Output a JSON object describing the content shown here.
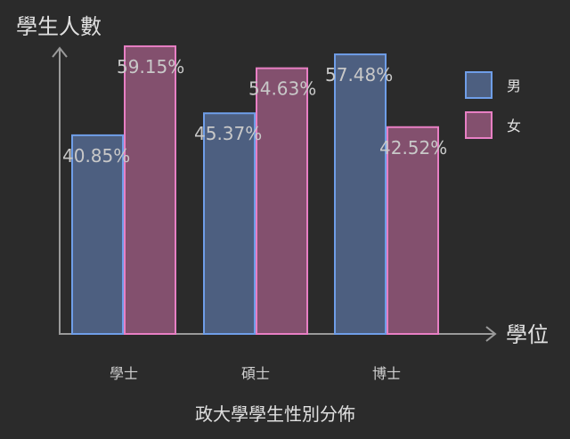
{
  "chart_data": {
    "type": "bar",
    "title": "政大學學生性別分佈",
    "xlabel": "學位",
    "ylabel": "學生人數",
    "categories": [
      "學士",
      "碩士",
      "博士"
    ],
    "series": [
      {
        "name": "男",
        "values": [
          40.85,
          45.37,
          57.48
        ],
        "labels": [
          "40.85%",
          "45.37%",
          "57.48%"
        ],
        "fill": "#4d5f80",
        "stroke": "#6f9ee8"
      },
      {
        "name": "女",
        "values": [
          59.15,
          54.63,
          42.52
        ],
        "labels": [
          "59.15%",
          "54.63%",
          "42.52%"
        ],
        "fill": "#83506e",
        "stroke": "#e87fc4"
      }
    ],
    "ylim": [
      0,
      65
    ],
    "grid": false,
    "legend": "top-right"
  }
}
